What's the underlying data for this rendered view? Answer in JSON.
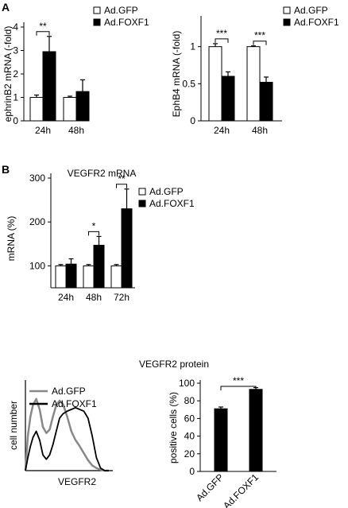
{
  "panels": {
    "a_label": "A",
    "b_label": "B"
  },
  "colors": {
    "gfp_fill": "#ffffff",
    "foxf1_fill": "#000000",
    "gfp_line": "#888888",
    "foxf1_line": "#000000"
  },
  "chart_data": [
    {
      "id": "ephrinB2",
      "type": "bar",
      "title": "",
      "ylabel": "ephrinB2 mRNA (-fold)",
      "xlabel": "",
      "categories": [
        "24h",
        "48h"
      ],
      "ylim": [
        0,
        4
      ],
      "yticks": [
        "0",
        "1",
        "2",
        "3",
        "4"
      ],
      "series": [
        {
          "name": "Ad.GFP",
          "values": [
            1.0,
            1.0
          ],
          "errors": [
            0.1,
            0.05
          ]
        },
        {
          "name": "Ad.FOXF1",
          "values": [
            2.95,
            1.25
          ],
          "errors": [
            0.65,
            0.5
          ]
        }
      ],
      "significance": [
        {
          "category": "24h",
          "label": "**"
        }
      ],
      "legend": "top-right"
    },
    {
      "id": "ephB4",
      "type": "bar",
      "title": "",
      "ylabel": "EphB4 mRNA (-fold)",
      "xlabel": "",
      "categories": [
        "24h",
        "48h"
      ],
      "ylim": [
        0,
        1.35
      ],
      "yticks": [
        "0",
        "0.5",
        "1"
      ],
      "series": [
        {
          "name": "Ad.GFP",
          "values": [
            1.0,
            1.0
          ],
          "errors": [
            0.04,
            0.01
          ]
        },
        {
          "name": "Ad.FOXF1",
          "values": [
            0.6,
            0.52
          ],
          "errors": [
            0.06,
            0.07
          ]
        }
      ],
      "significance": [
        {
          "category": "24h",
          "label": "***"
        },
        {
          "category": "48h",
          "label": "***"
        }
      ],
      "legend": "top-right"
    },
    {
      "id": "vegfr2mrna",
      "type": "bar",
      "title": "VEGFR2 mRNA",
      "ylabel": "mRNA (%)",
      "xlabel": "",
      "categories": [
        "24h",
        "48h",
        "72h"
      ],
      "ylim": [
        50,
        300
      ],
      "yticks": [
        "100",
        "200",
        "300"
      ],
      "series": [
        {
          "name": "Ad.GFP",
          "values": [
            100,
            100,
            100
          ],
          "errors": [
            3,
            3,
            3
          ]
        },
        {
          "name": "Ad.FOXF1",
          "values": [
            104,
            147,
            230
          ],
          "errors": [
            12,
            20,
            45
          ]
        }
      ],
      "significance": [
        {
          "category": "48h",
          "label": "*"
        },
        {
          "category": "72h",
          "label": "**"
        }
      ],
      "legend": "top-right"
    },
    {
      "id": "flow",
      "type": "line",
      "title": "VEGFR2 protein",
      "ylabel": "cell number",
      "xlabel": "VEGFR2",
      "series": [
        {
          "name": "Ad.GFP",
          "x": [
            0,
            3,
            6,
            9,
            13,
            17,
            21,
            25,
            29,
            33,
            37,
            41,
            45,
            50,
            55,
            60,
            65,
            70,
            75,
            80,
            85,
            90,
            95,
            100
          ],
          "y": [
            0,
            40,
            62,
            75,
            82,
            70,
            50,
            43,
            47,
            62,
            75,
            80,
            76,
            62,
            45,
            35,
            28,
            20,
            12,
            6,
            3,
            1,
            0,
            0
          ]
        },
        {
          "name": "Ad.FOXF1",
          "x": [
            0,
            3,
            6,
            9,
            13,
            17,
            21,
            25,
            29,
            33,
            37,
            41,
            45,
            50,
            55,
            60,
            65,
            70,
            75,
            80,
            85,
            90,
            95,
            100
          ],
          "y": [
            0,
            15,
            28,
            38,
            45,
            35,
            18,
            13,
            18,
            30,
            45,
            60,
            65,
            68,
            70,
            72,
            70,
            68,
            60,
            40,
            15,
            3,
            0,
            0
          ]
        }
      ],
      "legend": "top-left"
    },
    {
      "id": "positive",
      "type": "bar",
      "title": "",
      "ylabel": "positive cells (%)",
      "xlabel": "",
      "categories": [
        "Ad.GFP",
        "Ad.FOXF1"
      ],
      "values": [
        71,
        93
      ],
      "errors": [
        2,
        2
      ],
      "ylim": [
        0,
        100
      ],
      "yticks": [
        "0",
        "20",
        "40",
        "60",
        "80",
        "100"
      ],
      "significance": [
        {
          "label": "***"
        }
      ]
    }
  ]
}
